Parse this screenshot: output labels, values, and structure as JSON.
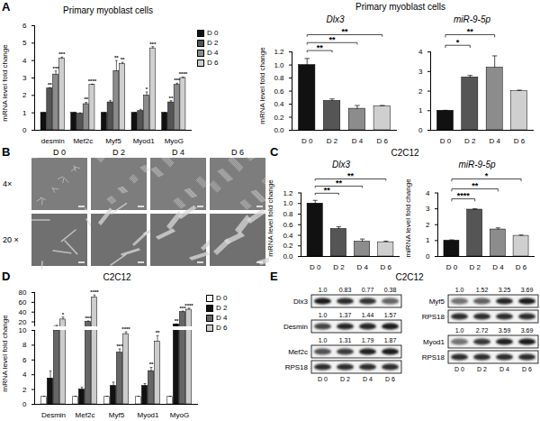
{
  "chart_data": [
    {
      "panel": "A",
      "type": "bar",
      "title": "Primary myoblast cells",
      "y_label": "mRNA level fold change",
      "categories": [
        "desmin",
        "Mef2c",
        "Myf5",
        "Myod1",
        "MyoG"
      ],
      "series": [
        {
          "name": "D 0",
          "color": "#111111",
          "values": [
            1,
            1,
            1,
            1,
            1
          ],
          "errors": [
            0.02,
            0.02,
            0.02,
            0.02,
            0.02
          ]
        },
        {
          "name": "D 2",
          "color": "#555555",
          "values": [
            2.4,
            0.95,
            1.6,
            1.1,
            1.6
          ],
          "errors": [
            0.05,
            0.05,
            0.1,
            0.1,
            0.1
          ],
          "significance": [
            "**",
            null,
            null,
            null,
            "**"
          ]
        },
        {
          "name": "D 4",
          "color": "#8c8c8c",
          "values": [
            3.2,
            1.5,
            3.4,
            2.0,
            2.6
          ],
          "errors": [
            0.2,
            0.1,
            0.6,
            0.2,
            0.1
          ],
          "significance": [
            "***",
            "**",
            "**",
            "*",
            "***"
          ]
        },
        {
          "name": "D 6",
          "color": "#cfcfcf",
          "values": [
            4.1,
            2.6,
            3.8,
            4.7,
            3.0
          ],
          "errors": [
            0.1,
            0.05,
            0.1,
            0.1,
            0.05
          ],
          "significance": [
            "***",
            "****",
            "**",
            "***",
            "****"
          ]
        }
      ],
      "ylim": [
        0,
        6
      ],
      "yticks": [
        0,
        1,
        2,
        3,
        4,
        5,
        6
      ],
      "legend": "right"
    },
    {
      "type": "bar",
      "heading": "Primary myoblast cells",
      "title": "Dlx3",
      "y_label": "mRNA level fold change",
      "categories": [
        "D 0",
        "D 2",
        "D 4",
        "D 6"
      ],
      "values": [
        1.0,
        0.45,
        0.33,
        0.37
      ],
      "errors": [
        0.1,
        0.03,
        0.05,
        0.01
      ],
      "colors": [
        "#111111",
        "#555555",
        "#8c8c8c",
        "#cfcfcf"
      ],
      "significance": [
        null,
        "**",
        "**",
        "**"
      ],
      "ylim": [
        0,
        1.2
      ],
      "yticks": [
        {
          "value": 0,
          "label": "0.0"
        },
        {
          "value": 0.2,
          "label": "0.2"
        },
        {
          "value": 0.4,
          "label": "0.4"
        },
        {
          "value": 0.6,
          "label": "0.6"
        },
        {
          "value": 0.8,
          "label": "0.8"
        },
        {
          "value": 1,
          "label": "1.0"
        },
        {
          "value": 1.2,
          "label": "1.2"
        }
      ]
    },
    {
      "type": "bar",
      "title": "miR-9-5p",
      "categories": [
        "D 0",
        "D 2",
        "D 4",
        "D 6"
      ],
      "values": [
        1.0,
        2.7,
        3.2,
        2.0
      ],
      "errors": [
        0.02,
        0.1,
        0.6,
        0.05
      ],
      "colors": [
        "#111111",
        "#555555",
        "#8c8c8c",
        "#cfcfcf"
      ],
      "significance": [
        null,
        "*",
        "**",
        null
      ],
      "ylim": [
        0,
        4
      ],
      "yticks": [
        0,
        1,
        2,
        3,
        4
      ]
    },
    {
      "panel": "C",
      "type": "bar",
      "heading": "C2C12",
      "title": "Dlx3",
      "y_label": "mRNA level fold change",
      "categories": [
        "D 0",
        "D 2",
        "D 4",
        "D 6"
      ],
      "values": [
        1.0,
        0.52,
        0.28,
        0.27
      ],
      "errors": [
        0.06,
        0.04,
        0.05,
        0.02
      ],
      "colors": [
        "#111111",
        "#555555",
        "#8c8c8c",
        "#cfcfcf"
      ],
      "significance": [
        null,
        "**",
        "**",
        "**"
      ],
      "ylim": [
        0,
        1.2
      ],
      "yticks": [
        {
          "value": 0,
          "label": "0.0"
        },
        {
          "value": 0.2,
          "label": "0.2"
        },
        {
          "value": 0.4,
          "label": "0.4"
        },
        {
          "value": 0.6,
          "label": "0.6"
        },
        {
          "value": 0.8,
          "label": "0.8"
        },
        {
          "value": 1,
          "label": "1.0"
        },
        {
          "value": 1.2,
          "label": "1.2"
        }
      ]
    },
    {
      "type": "bar",
      "title": "miR-9-5p",
      "y_label": "miRNA level fold change",
      "categories": [
        "D 0",
        "D 2",
        "D 4",
        "D 6"
      ],
      "values": [
        1.0,
        2.95,
        1.7,
        1.3
      ],
      "errors": [
        0.05,
        0.05,
        0.1,
        0.05
      ],
      "colors": [
        "#111111",
        "#555555",
        "#8c8c8c",
        "#cfcfcf"
      ],
      "significance": [
        null,
        "****",
        "**",
        "*"
      ],
      "ylim": [
        0,
        4
      ],
      "yticks": [
        0,
        1,
        2,
        3,
        4
      ]
    },
    {
      "panel": "D",
      "type": "bar",
      "heading": "C2C12",
      "y_label": "mRNA level fold change",
      "categories": [
        "Desmin",
        "Mef2c",
        "Myf5",
        "Myod1",
        "MyoG"
      ],
      "series": [
        {
          "name": "D 0",
          "color": "#ffffff",
          "values": [
            1,
            1,
            1,
            1,
            1
          ],
          "errors": [
            0.1,
            0.1,
            0.1,
            0.1,
            0.1
          ]
        },
        {
          "name": "D 2",
          "color": "#111111",
          "values": [
            3.5,
            2.0,
            2.5,
            2.5,
            15
          ],
          "errors": [
            1,
            0.3,
            0.5,
            0.3,
            1
          ],
          "significance": [
            null,
            null,
            null,
            null,
            "**"
          ]
        },
        {
          "name": "D 4",
          "color": "#666666",
          "values": [
            10,
            20,
            7,
            4.5,
            40
          ],
          "errors": [
            3,
            2,
            0.5,
            0.5,
            2
          ],
          "significance": [
            null,
            "***",
            "***",
            "**",
            "***"
          ]
        },
        {
          "name": "D 6",
          "color": "#cccccc",
          "values": [
            25,
            70,
            9.5,
            8.5,
            45
          ],
          "errors": [
            5,
            5,
            0.3,
            0.8,
            3
          ],
          "significance": [
            "*",
            "****",
            "****",
            "**",
            "****"
          ]
        }
      ],
      "ylim": [
        0,
        80
      ],
      "y_segments": [
        [
          0,
          10
        ],
        [
          10,
          80
        ]
      ],
      "yticks": [
        0,
        2,
        4,
        6,
        8,
        10,
        20,
        40,
        60,
        80
      ],
      "legend": "right"
    }
  ],
  "micrographs": {
    "panel": "B",
    "columns": [
      "D 0",
      "D 2",
      "D 4",
      "D 6"
    ],
    "rows": [
      "4×",
      "20 ×"
    ]
  },
  "western_blot": {
    "panel": "E",
    "title": "C2C12",
    "lanes": [
      "D 0",
      "D 2",
      "D 4",
      "D 6"
    ],
    "columns": [
      [
        {
          "protein": "Dlx3",
          "values": [
            1.0,
            0.83,
            0.77,
            0.38
          ],
          "value_labels": [
            "1.0",
            "0.83",
            "0.77",
            "0.38"
          ]
        },
        {
          "protein": "Desmin",
          "values": [
            1.0,
            1.37,
            1.44,
            1.57
          ],
          "value_labels": [
            "1.0",
            "1.37",
            "1.44",
            "1.57"
          ]
        },
        {
          "protein": "Mef2c",
          "values": [
            1.0,
            1.31,
            1.79,
            1.87
          ],
          "value_labels": [
            "1.0",
            "1.31",
            "1.79",
            "1.87"
          ]
        },
        {
          "protein": "RPS18"
        }
      ],
      [
        {
          "protein": "Myf5",
          "values": [
            1.0,
            1.52,
            3.25,
            3.69
          ],
          "value_labels": [
            "1.0",
            "1.52",
            "3.25",
            "3.69"
          ]
        },
        {
          "protein": "RPS18"
        },
        {
          "protein": "Myod1",
          "values": [
            1.0,
            2.72,
            3.59,
            3.69
          ],
          "value_labels": [
            "1.0",
            "2.72",
            "3.59",
            "3.69"
          ]
        },
        {
          "protein": "RPS18"
        }
      ]
    ]
  }
}
